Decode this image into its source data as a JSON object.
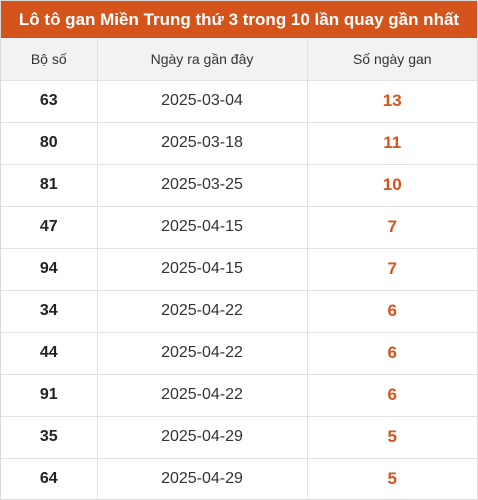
{
  "title": "Lô tô gan Miền Trung thứ 3 trong 10 lần quay gần nhất",
  "colors": {
    "accent": "#d4541c",
    "header_bg": "#f2f2f2"
  },
  "columns": [
    "Bộ số",
    "Ngày ra gần đây",
    "Số ngày gan"
  ],
  "rows": [
    {
      "number": "63",
      "date": "2025-03-04",
      "days": "13"
    },
    {
      "number": "80",
      "date": "2025-03-18",
      "days": "11"
    },
    {
      "number": "81",
      "date": "2025-03-25",
      "days": "10"
    },
    {
      "number": "47",
      "date": "2025-04-15",
      "days": "7"
    },
    {
      "number": "94",
      "date": "2025-04-15",
      "days": "7"
    },
    {
      "number": "34",
      "date": "2025-04-22",
      "days": "6"
    },
    {
      "number": "44",
      "date": "2025-04-22",
      "days": "6"
    },
    {
      "number": "91",
      "date": "2025-04-22",
      "days": "6"
    },
    {
      "number": "35",
      "date": "2025-04-29",
      "days": "5"
    },
    {
      "number": "64",
      "date": "2025-04-29",
      "days": "5"
    }
  ]
}
